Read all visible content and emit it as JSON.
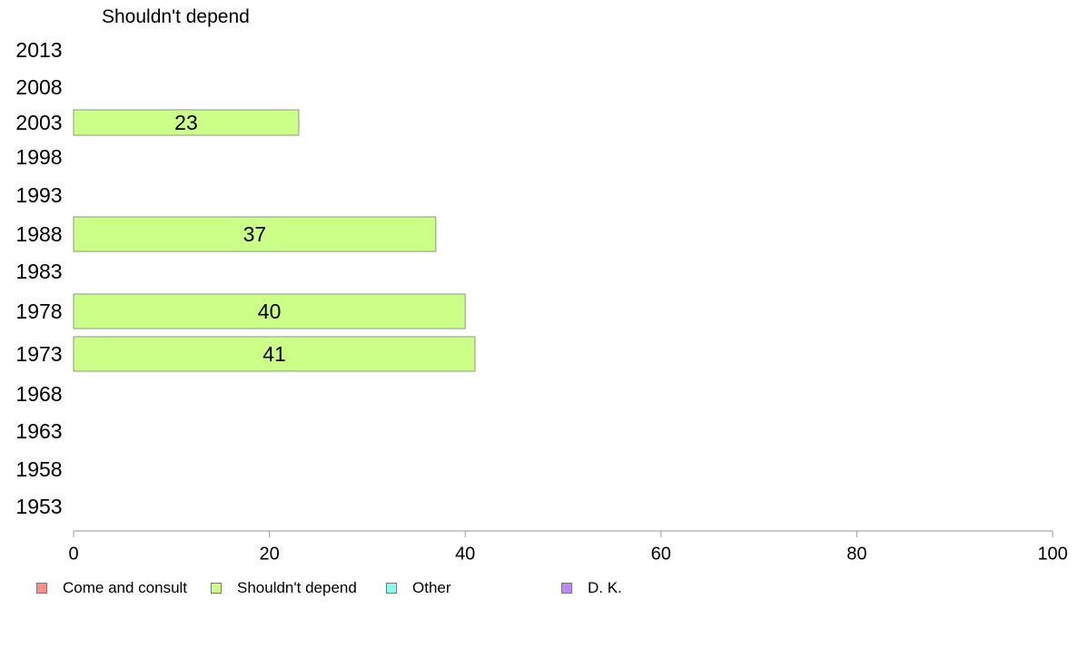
{
  "chart_data": {
    "type": "bar",
    "orientation": "horizontal",
    "title": "Shouldn't depend",
    "categories": [
      "2013",
      "2008",
      "2003",
      "1998",
      "1993",
      "1988",
      "1983",
      "1978",
      "1973",
      "1968",
      "1963",
      "1958",
      "1953"
    ],
    "series": [
      {
        "name": "Shouldn't depend",
        "color": "#ccff88",
        "values": [
          null,
          null,
          23,
          null,
          null,
          37,
          null,
          40,
          41,
          null,
          null,
          null,
          null
        ],
        "data_labels": [
          "",
          "",
          "23",
          "",
          "",
          "37",
          "",
          "40",
          "41",
          "",
          "",
          "",
          ""
        ]
      }
    ],
    "xlim": [
      0,
      100
    ],
    "x_ticks": [
      "0",
      "20",
      "40",
      "60",
      "80",
      "100"
    ],
    "grid": false,
    "legend_placement": "bottom",
    "legend": [
      {
        "label": "Come and consult",
        "color": "#ff8f8a"
      },
      {
        "label": "Shouldn't depend",
        "color": "#ccff88"
      },
      {
        "label": "Other",
        "color": "#88ffee"
      },
      {
        "label": "D. K.",
        "color": "#bb88f5"
      }
    ]
  }
}
